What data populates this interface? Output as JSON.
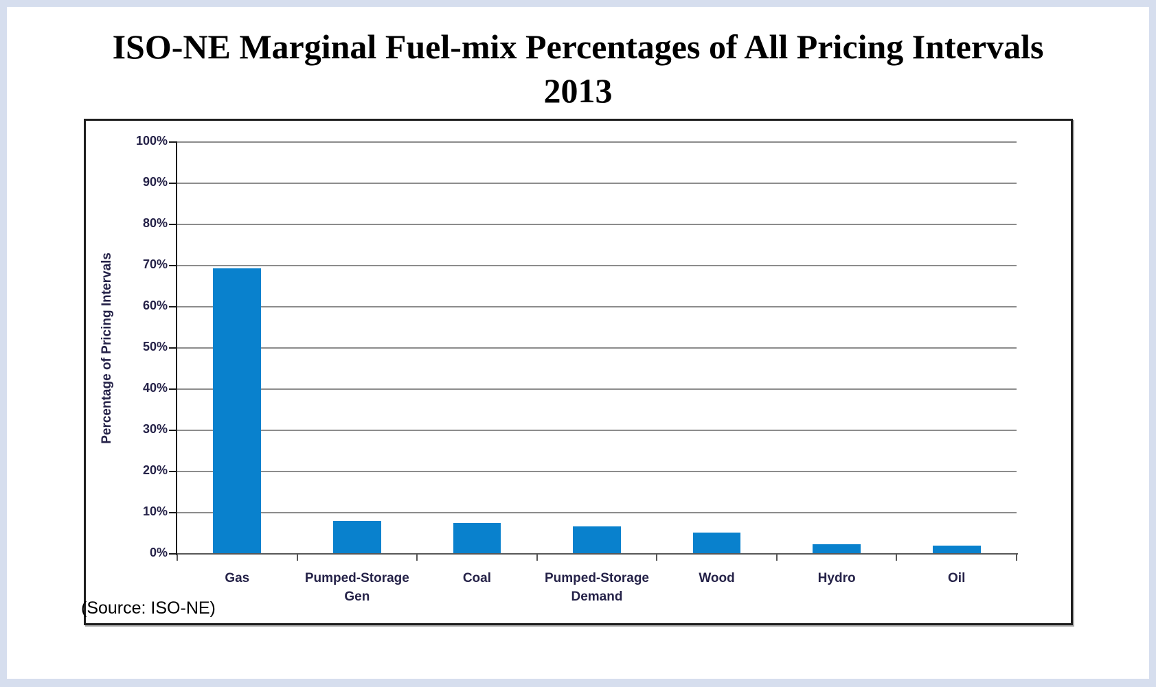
{
  "title": {
    "line1": "ISO-NE Marginal Fuel-mix Percentages of All Pricing Intervals",
    "line2": "2013"
  },
  "source_note": "(Source: ISO-NE)",
  "colors": {
    "bar": "#0981cd",
    "gridline": "#8c8c8c",
    "y_axis": "#1a1a1a",
    "x_axis": "#575757",
    "label_text": "#252248",
    "title_text": "#000000",
    "page_border": "#d6deee",
    "frame_border": "#1f1f1f",
    "background": "#ffffff"
  },
  "chart_data": {
    "type": "bar",
    "title": "ISO-NE Marginal Fuel-mix Percentages of All Pricing Intervals 2013",
    "categories": [
      "Gas",
      "Pumped-Storage Gen",
      "Coal",
      "Pumped-Storage Demand",
      "Wood",
      "Hydro",
      "Oil"
    ],
    "values": [
      69.3,
      8.0,
      7.5,
      6.6,
      5.1,
      2.4,
      2.0
    ],
    "xlabel": "",
    "ylabel": "Percentage of Pricing Intervals",
    "ylim": [
      0,
      100
    ],
    "ytick_step": 10,
    "ytick_labels": [
      "0%",
      "10%",
      "20%",
      "30%",
      "40%",
      "50%",
      "60%",
      "70%",
      "80%",
      "90%",
      "100%"
    ],
    "grid": true,
    "legend": false
  }
}
